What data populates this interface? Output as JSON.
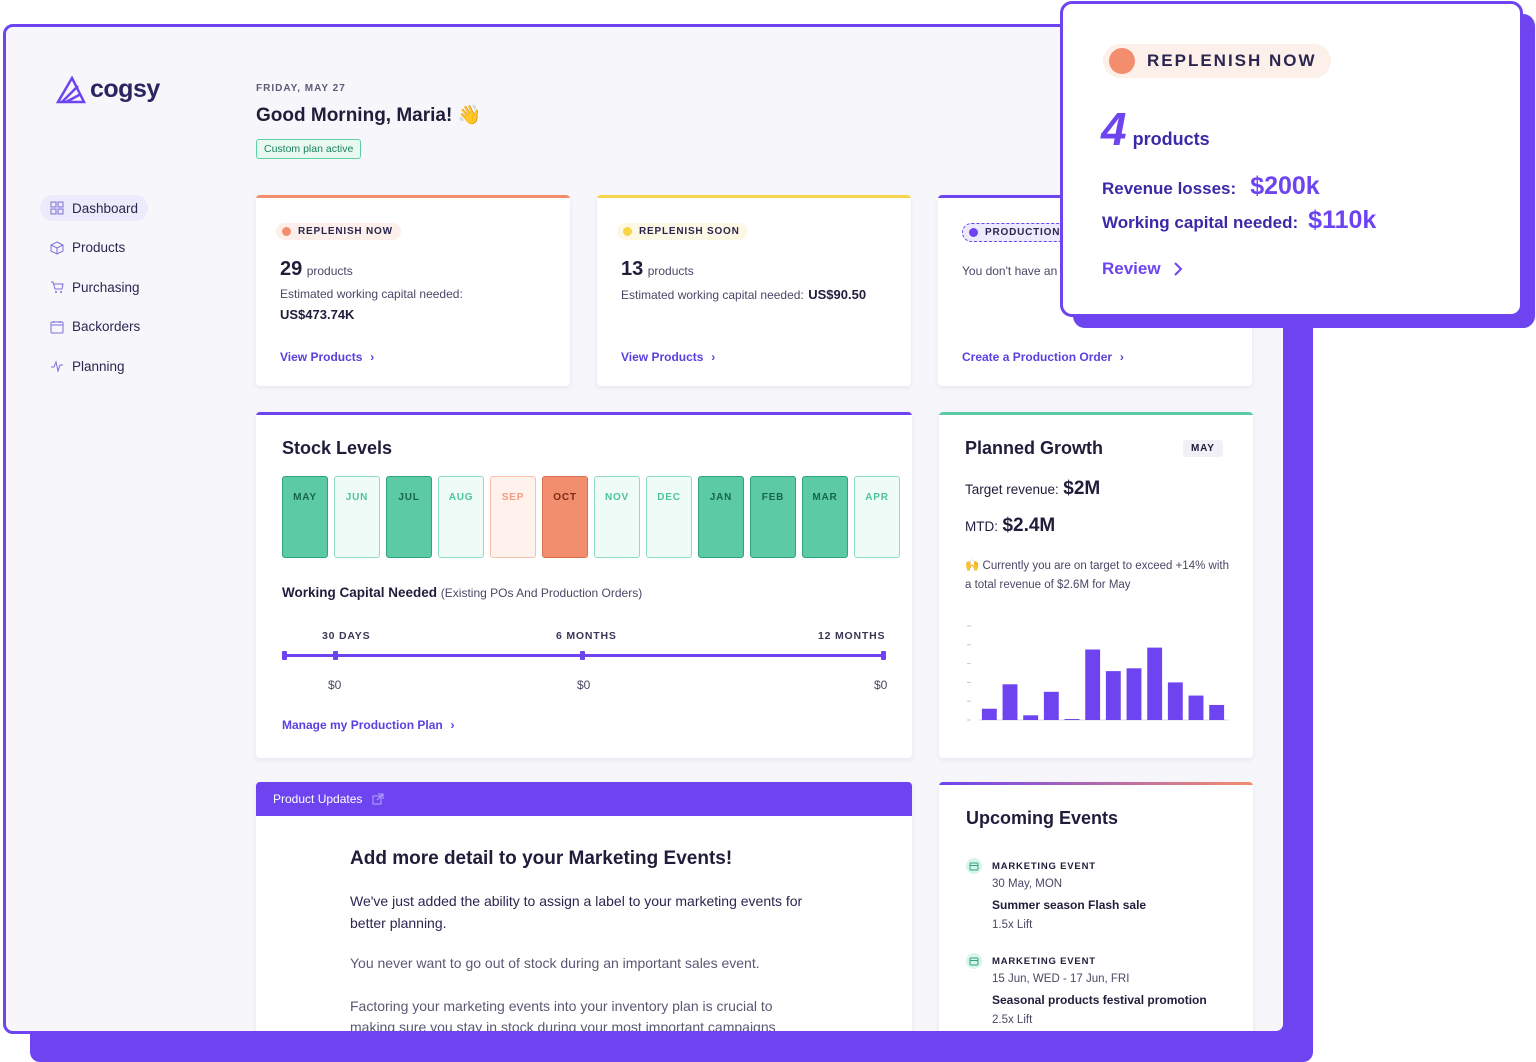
{
  "brand": {
    "name": "cogsy"
  },
  "sidebar": {
    "items": [
      {
        "label": "Dashboard",
        "icon": "grid-icon",
        "active": true
      },
      {
        "label": "Products",
        "icon": "box-icon"
      },
      {
        "label": "Purchasing",
        "icon": "cart-icon"
      },
      {
        "label": "Backorders",
        "icon": "calendar-icon"
      },
      {
        "label": "Planning",
        "icon": "pulse-icon"
      }
    ]
  },
  "header": {
    "date": "FRIDAY, MAY 27",
    "greeting": "Good Morning, Maria! 👋",
    "plan_badge": "Custom plan active"
  },
  "cards": {
    "replenish_now": {
      "pill": "REPLENISH NOW",
      "count": "29",
      "unit": "products",
      "caption": "Estimated working capital needed:",
      "value": "US$473.74K",
      "link": "View Products",
      "color": "#f28e6e"
    },
    "replenish_soon": {
      "pill": "REPLENISH SOON",
      "count": "13",
      "unit": "products",
      "caption": "Estimated working capital needed:",
      "value": "US$90.50",
      "link": "View Products",
      "color": "#f7d54a"
    },
    "production": {
      "pill": "PRODUCTION O",
      "text": "You don't have an",
      "link": "Create a Production Order",
      "color": "#6d44f0"
    }
  },
  "stock_levels": {
    "title": "Stock Levels",
    "months": [
      {
        "label": "MAY",
        "status": "full"
      },
      {
        "label": "JUN",
        "status": "light"
      },
      {
        "label": "JUL",
        "status": "full"
      },
      {
        "label": "AUG",
        "status": "light"
      },
      {
        "label": "SEP",
        "status": "warn-l"
      },
      {
        "label": "OCT",
        "status": "warn"
      },
      {
        "label": "NOV",
        "status": "light"
      },
      {
        "label": "DEC",
        "status": "light"
      },
      {
        "label": "JAN",
        "status": "full"
      },
      {
        "label": "FEB",
        "status": "full"
      },
      {
        "label": "MAR",
        "status": "full"
      },
      {
        "label": "APR",
        "status": "light"
      }
    ],
    "wc_title": "Working Capital Needed",
    "wc_sub": "(Existing POs And Production Orders)",
    "periods": [
      {
        "label": "30 DAYS",
        "value": "$0"
      },
      {
        "label": "6 MONTHS",
        "value": "$0"
      },
      {
        "label": "12 MONTHS",
        "value": "$0"
      }
    ],
    "link": "Manage my Production Plan"
  },
  "planned_growth": {
    "title": "Planned Growth",
    "month_tag": "MAY",
    "target_label": "Target revenue:",
    "target_value": "$2M",
    "mtd_label": "MTD:",
    "mtd_value": "$2.4M",
    "note_icon": "🙌",
    "note": "Currently you are on target to exceed +14% with a total revenue of $2.6M for May"
  },
  "chart_data": {
    "type": "bar",
    "values": [
      12,
      38,
      5,
      30,
      1,
      75,
      52,
      55,
      77,
      40,
      26,
      16
    ],
    "color": "#6d44f0",
    "ylim": [
      0,
      100
    ]
  },
  "product_updates": {
    "bar_label": "Product Updates",
    "headline": "Add more detail to your Marketing Events!",
    "p1": "We've just added the ability to assign a label to your marketing events for better planning.",
    "p2": "You never want to go out of stock during an important sales event.",
    "p3": "Factoring your marketing events into your inventory plan is crucial to",
    "p4": "making sure you stay in stock during your most important campaigns"
  },
  "upcoming_events": {
    "title": "Upcoming Events",
    "events": [
      {
        "type": "MARKETING EVENT",
        "date": "30 May, MON",
        "name": "Summer season Flash sale",
        "lift": "1.5x Lift"
      },
      {
        "type": "MARKETING EVENT",
        "date": "15 Jun, WED - 17 Jun, FRI",
        "name": "Seasonal products festival promotion",
        "lift": "2.5x Lift"
      }
    ]
  },
  "popup": {
    "pill": "REPLENISH NOW",
    "count": "4",
    "unit": "products",
    "revenue_label": "Revenue losses:",
    "revenue_value": "$200k",
    "capital_label": "Working capital needed:",
    "capital_value": "$110k",
    "link": "Review"
  }
}
